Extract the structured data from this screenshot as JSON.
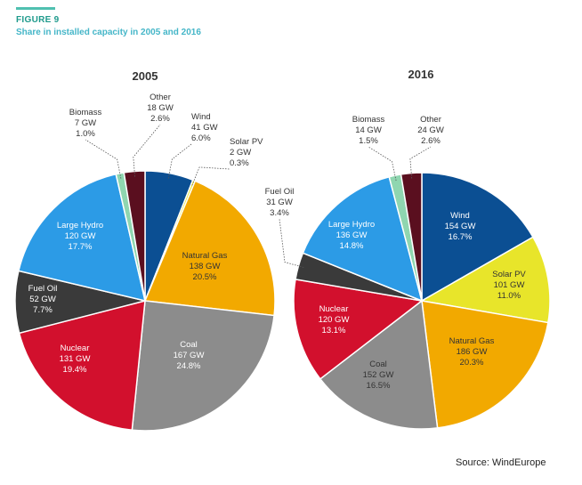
{
  "figure": {
    "label": "FIGURE 9",
    "title": "Share in installed capacity in 2005 and 2016",
    "source": "Source: WindEurope"
  },
  "colors": {
    "accent": "#4fc0b0",
    "Wind": "#0b4f93",
    "Solar PV": "#e8e52a",
    "Natural Gas": "#f2a900",
    "Coal": "#8c8c8c",
    "Nuclear": "#d2102d",
    "Fuel Oil": "#3a3a3a",
    "Large Hydro": "#2c9be6",
    "Biomass": "#8fd6b0",
    "Other": "#5a0f1f"
  },
  "chart_data": [
    {
      "type": "pie",
      "title": "2005",
      "unit": "GW",
      "slices": [
        {
          "name": "Wind",
          "gw": "41 GW",
          "pct": "6.0%",
          "value": 6.0
        },
        {
          "name": "Solar PV",
          "gw": "2 GW",
          "pct": "0.3%",
          "value": 0.3
        },
        {
          "name": "Natural Gas",
          "gw": "138 GW",
          "pct": "20.5%",
          "value": 20.5
        },
        {
          "name": "Coal",
          "gw": "167 GW",
          "pct": "24.8%",
          "value": 24.8
        },
        {
          "name": "Nuclear",
          "gw": "131 GW",
          "pct": "19.4%",
          "value": 19.4
        },
        {
          "name": "Fuel Oil",
          "gw": "52 GW",
          "pct": "7.7%",
          "value": 7.7
        },
        {
          "name": "Large Hydro",
          "gw": "120 GW",
          "pct": "17.7%",
          "value": 17.7
        },
        {
          "name": "Biomass",
          "gw": "7 GW",
          "pct": "1.0%",
          "value": 1.0
        },
        {
          "name": "Other",
          "gw": "18 GW",
          "pct": "2.6%",
          "value": 2.6
        }
      ]
    },
    {
      "type": "pie",
      "title": "2016",
      "unit": "GW",
      "slices": [
        {
          "name": "Wind",
          "gw": "154 GW",
          "pct": "16.7%",
          "value": 16.7
        },
        {
          "name": "Solar PV",
          "gw": "101 GW",
          "pct": "11.0%",
          "value": 11.0
        },
        {
          "name": "Natural Gas",
          "gw": "186 GW",
          "pct": "20.3%",
          "value": 20.3
        },
        {
          "name": "Coal",
          "gw": "152 GW",
          "pct": "16.5%",
          "value": 16.5
        },
        {
          "name": "Nuclear",
          "gw": "120 GW",
          "pct": "13.1%",
          "value": 13.1
        },
        {
          "name": "Fuel Oil",
          "gw": "31 GW",
          "pct": "3.4%",
          "value": 3.4
        },
        {
          "name": "Large Hydro",
          "gw": "136 GW",
          "pct": "14.8%",
          "value": 14.8
        },
        {
          "name": "Biomass",
          "gw": "14 GW",
          "pct": "1.5%",
          "value": 1.5
        },
        {
          "name": "Other",
          "gw": "24 GW",
          "pct": "2.6%",
          "value": 2.6
        }
      ]
    }
  ]
}
